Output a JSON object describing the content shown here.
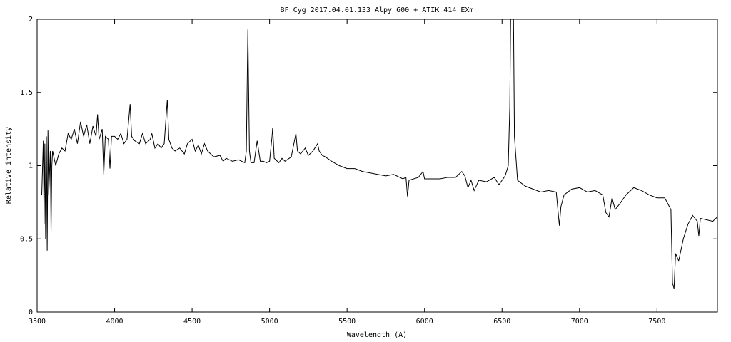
{
  "chart_data": {
    "type": "line",
    "title": "BF Cyg 2017.04.01.133 Alpy 600 + ATIK 414 EXm",
    "x_label": "Wavelength (A)",
    "y_label": "Relative intensity",
    "color": "#000000",
    "xlim": [
      3500,
      7890
    ],
    "ylim": [
      0,
      2
    ],
    "xticks": [
      3500,
      4000,
      4500,
      5000,
      5500,
      6000,
      6500,
      7000,
      7500
    ],
    "yticks": [
      0,
      0.5,
      1,
      1.5,
      2
    ],
    "grid": false,
    "x": [
      3530,
      3540,
      3545,
      3550,
      3555,
      3560,
      3565,
      3570,
      3575,
      3585,
      3590,
      3595,
      3600,
      3620,
      3640,
      3660,
      3680,
      3700,
      3720,
      3740,
      3760,
      3780,
      3800,
      3820,
      3840,
      3860,
      3880,
      3890,
      3900,
      3920,
      3930,
      3940,
      3960,
      3970,
      3980,
      4000,
      4020,
      4040,
      4060,
      4080,
      4100,
      4110,
      4130,
      4160,
      4180,
      4200,
      4230,
      4240,
      4260,
      4280,
      4300,
      4320,
      4340,
      4350,
      4370,
      4390,
      4420,
      4450,
      4470,
      4500,
      4520,
      4540,
      4560,
      4580,
      4600,
      4640,
      4680,
      4700,
      4720,
      4760,
      4800,
      4840,
      4850,
      4860,
      4870,
      4880,
      4900,
      4920,
      4940,
      4960,
      4980,
      5000,
      5016,
      5020,
      5030,
      5060,
      5080,
      5100,
      5140,
      5170,
      5180,
      5200,
      5230,
      5250,
      5280,
      5310,
      5320,
      5340,
      5360,
      5400,
      5450,
      5500,
      5550,
      5600,
      5650,
      5700,
      5750,
      5800,
      5860,
      5880,
      5890,
      5900,
      5960,
      5990,
      6000,
      6100,
      6150,
      6200,
      6240,
      6260,
      6280,
      6300,
      6320,
      6350,
      6400,
      6450,
      6480,
      6520,
      6540,
      6550,
      6560,
      6570,
      6580,
      6600,
      6650,
      6700,
      6750,
      6800,
      6850,
      6870,
      6880,
      6900,
      6950,
      7000,
      7050,
      7100,
      7150,
      7170,
      7190,
      7210,
      7230,
      7260,
      7300,
      7350,
      7400,
      7450,
      7500,
      7550,
      7590,
      7600,
      7610,
      7620,
      7640,
      7670,
      7700,
      7730,
      7760,
      7770,
      7780,
      7820,
      7860,
      7890
    ],
    "values": [
      0.8,
      1.17,
      0.6,
      1.15,
      0.5,
      1.2,
      0.42,
      1.24,
      0.8,
      1.1,
      0.55,
      1.0,
      1.1,
      1.0,
      1.08,
      1.12,
      1.1,
      1.22,
      1.18,
      1.25,
      1.15,
      1.3,
      1.2,
      1.28,
      1.15,
      1.27,
      1.2,
      1.35,
      1.18,
      1.25,
      0.94,
      1.2,
      1.18,
      0.98,
      1.2,
      1.2,
      1.18,
      1.22,
      1.15,
      1.18,
      1.42,
      1.2,
      1.17,
      1.15,
      1.22,
      1.15,
      1.18,
      1.22,
      1.12,
      1.15,
      1.12,
      1.15,
      1.45,
      1.18,
      1.12,
      1.1,
      1.12,
      1.08,
      1.15,
      1.18,
      1.1,
      1.14,
      1.08,
      1.15,
      1.1,
      1.06,
      1.07,
      1.03,
      1.05,
      1.03,
      1.04,
      1.02,
      1.1,
      1.93,
      1.1,
      1.02,
      1.02,
      1.17,
      1.03,
      1.03,
      1.02,
      1.03,
      1.2,
      1.26,
      1.05,
      1.02,
      1.05,
      1.03,
      1.06,
      1.22,
      1.1,
      1.08,
      1.12,
      1.07,
      1.1,
      1.15,
      1.1,
      1.07,
      1.06,
      1.03,
      1.0,
      0.98,
      0.98,
      0.96,
      0.95,
      0.94,
      0.93,
      0.94,
      0.91,
      0.92,
      0.79,
      0.9,
      0.92,
      0.96,
      0.91,
      0.91,
      0.92,
      0.92,
      0.96,
      0.93,
      0.85,
      0.9,
      0.83,
      0.9,
      0.89,
      0.92,
      0.87,
      0.93,
      1.0,
      1.4,
      2.5,
      2.5,
      1.2,
      0.9,
      0.86,
      0.84,
      0.82,
      0.83,
      0.82,
      0.59,
      0.72,
      0.8,
      0.84,
      0.85,
      0.82,
      0.83,
      0.8,
      0.68,
      0.65,
      0.78,
      0.7,
      0.74,
      0.8,
      0.85,
      0.83,
      0.8,
      0.78,
      0.78,
      0.7,
      0.2,
      0.16,
      0.4,
      0.35,
      0.5,
      0.6,
      0.66,
      0.62,
      0.52,
      0.64,
      0.63,
      0.62,
      0.65
    ]
  }
}
